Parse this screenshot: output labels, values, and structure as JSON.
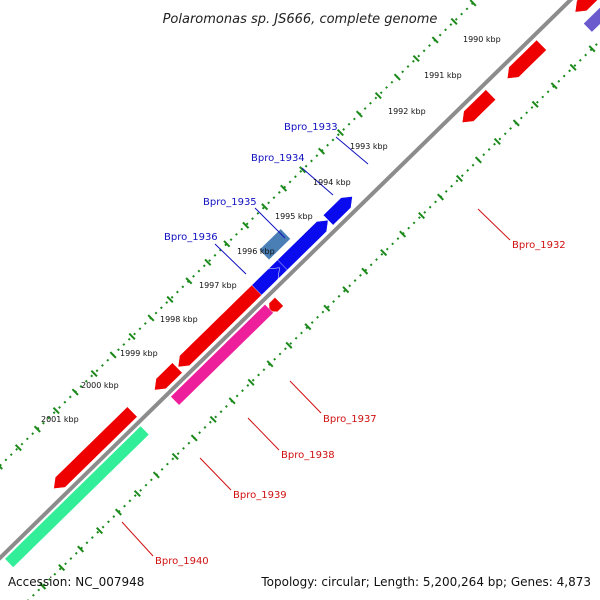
{
  "title": "Polaromonas sp. JS666, complete genome",
  "footer": {
    "accession": "Accession: NC_007948",
    "summary": "Topology: circular; Length: 5,200,264 bp; Genes: 4,873"
  },
  "scale_labels": [
    "1990 kbp",
    "1991 kbp",
    "1992 kbp",
    "1993 kbp",
    "1994 kbp",
    "1995 kbp",
    "1996 kbp",
    "1997 kbp",
    "1998 kbp",
    "1999 kbp",
    "2000 kbp",
    "2001 kbp"
  ],
  "colors": {
    "backbone": "#8c8c8c",
    "ticks": "#1b8a1b",
    "forward_label": "#1010c0",
    "reverse_label": "#d01010",
    "red": "#ee0000",
    "blue": "#0a0aee",
    "steel": "#4a7fb5",
    "pink": "#ee1f9a",
    "mint": "#33ee99",
    "lavender": "#6a5acd"
  },
  "gene_labels": {
    "Bpro_1932": "Bpro_1932",
    "Bpro_1933": "Bpro_1933",
    "Bpro_1934": "Bpro_1934",
    "Bpro_1935": "Bpro_1935",
    "Bpro_1936": "Bpro_1936",
    "Bpro_1937": "Bpro_1937",
    "Bpro_1938": "Bpro_1938",
    "Bpro_1939": "Bpro_1939",
    "Bpro_1940": "Bpro_1940"
  }
}
